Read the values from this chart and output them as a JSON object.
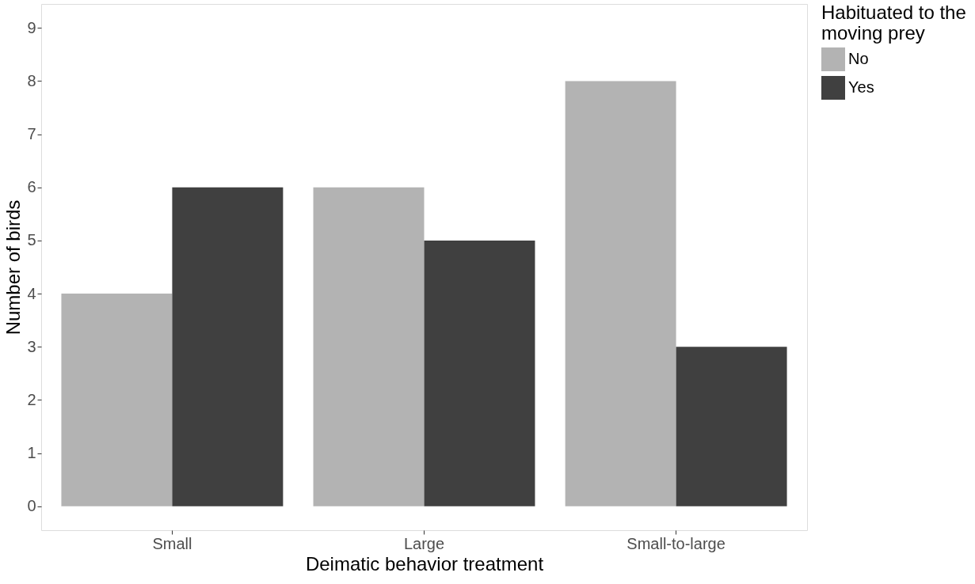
{
  "chart_data": {
    "type": "bar",
    "xlabel": "Deimatic behavior treatment",
    "ylabel": "Number of birds",
    "legend_title": "Habituated to the\nmoving prey",
    "categories": [
      "Small",
      "Large",
      "Small-to-large"
    ],
    "series": [
      {
        "name": "No",
        "color": "#b3b3b3",
        "values": [
          4,
          6,
          8
        ]
      },
      {
        "name": "Yes",
        "color": "#404040",
        "values": [
          6,
          5,
          3
        ]
      }
    ],
    "ylim": [
      -0.45,
      9.45
    ],
    "yticks": [
      0,
      1,
      2,
      3,
      4,
      5,
      6,
      7,
      8,
      9
    ],
    "grid": false,
    "legend": "right"
  }
}
